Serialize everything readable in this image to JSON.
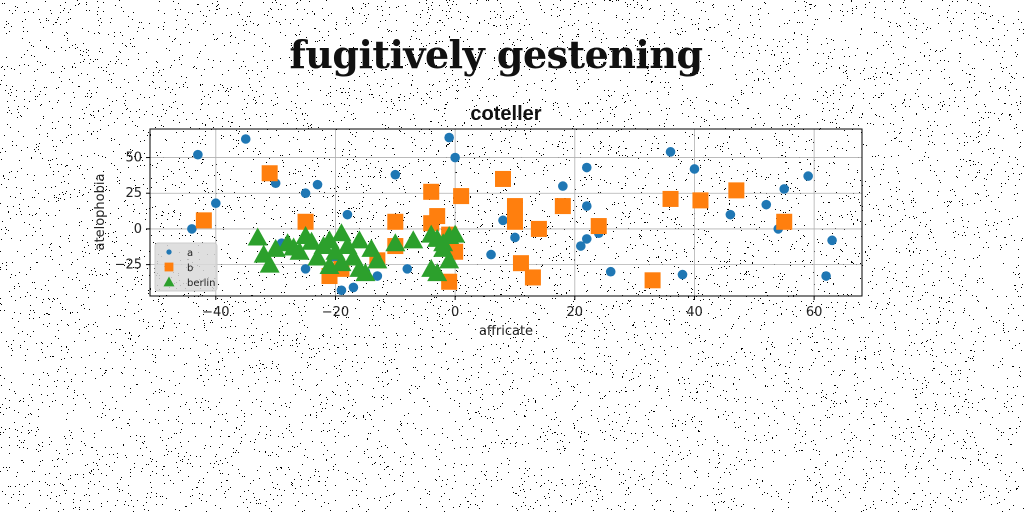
{
  "page": {
    "title": "fugitively gestening"
  },
  "chart_data": {
    "type": "scatter",
    "title": "coteller",
    "xlabel": "affricate",
    "ylabel": "atelophobia",
    "xlim": [
      -51,
      68
    ],
    "ylim": [
      -47,
      70
    ],
    "xticks": [
      -40,
      -20,
      0,
      20,
      40,
      60
    ],
    "xtick_labels": [
      "−40",
      "−20",
      "0",
      "20",
      "40",
      "60"
    ],
    "yticks": [
      -25,
      0,
      25,
      50
    ],
    "ytick_labels": [
      "−25",
      "0",
      "25",
      "50"
    ],
    "grid": true,
    "legend_position": "lower-left",
    "colors": {
      "a": "#1f77b4",
      "b": "#ff7f0e",
      "berlin": "#2ca02c"
    },
    "series": [
      {
        "name": "a",
        "marker": "circle",
        "points": [
          [
            -44,
            0
          ],
          [
            -43,
            52
          ],
          [
            -40,
            18
          ],
          [
            -35,
            63
          ],
          [
            -30,
            32
          ],
          [
            -29,
            -10
          ],
          [
            -25,
            25
          ],
          [
            -25,
            -28
          ],
          [
            -23,
            31
          ],
          [
            -20,
            -20
          ],
          [
            -19,
            -43
          ],
          [
            -18,
            10
          ],
          [
            -17,
            -41
          ],
          [
            -15,
            -30
          ],
          [
            -13,
            -33
          ],
          [
            -10,
            38
          ],
          [
            -8,
            -28
          ],
          [
            -1,
            64
          ],
          [
            0,
            50
          ],
          [
            6,
            -18
          ],
          [
            8,
            33
          ],
          [
            8,
            6
          ],
          [
            10,
            -6
          ],
          [
            18,
            30
          ],
          [
            21,
            -12
          ],
          [
            22,
            -7
          ],
          [
            22,
            43
          ],
          [
            22,
            16
          ],
          [
            24,
            -3
          ],
          [
            26,
            -30
          ],
          [
            36,
            54
          ],
          [
            38,
            -32
          ],
          [
            40,
            42
          ],
          [
            46,
            10
          ],
          [
            52,
            17
          ],
          [
            54,
            0
          ],
          [
            55,
            28
          ],
          [
            59,
            37
          ],
          [
            62,
            -33
          ],
          [
            63,
            -8
          ]
        ]
      },
      {
        "name": "b",
        "marker": "square",
        "points": [
          [
            -42,
            6
          ],
          [
            -31,
            39
          ],
          [
            -25,
            5
          ],
          [
            -21,
            -33
          ],
          [
            -19,
            -28
          ],
          [
            -13,
            -22
          ],
          [
            -10,
            5
          ],
          [
            -10,
            -12
          ],
          [
            -4,
            26
          ],
          [
            -4,
            4
          ],
          [
            -3,
            9
          ],
          [
            -1,
            -37
          ],
          [
            -1,
            -4
          ],
          [
            0,
            -16
          ],
          [
            1,
            23
          ],
          [
            8,
            35
          ],
          [
            10,
            16
          ],
          [
            10,
            5
          ],
          [
            11,
            -24
          ],
          [
            13,
            -34
          ],
          [
            14,
            0
          ],
          [
            18,
            16
          ],
          [
            24,
            2
          ],
          [
            33,
            -36
          ],
          [
            36,
            21
          ],
          [
            41,
            20
          ],
          [
            47,
            27
          ],
          [
            55,
            5
          ]
        ]
      },
      {
        "name": "berlin",
        "marker": "triangle",
        "points": [
          [
            -33,
            -6
          ],
          [
            -32,
            -18
          ],
          [
            -31,
            -25
          ],
          [
            -30,
            -14
          ],
          [
            -28,
            -10
          ],
          [
            -27,
            -13
          ],
          [
            -26,
            -16
          ],
          [
            -25,
            -5
          ],
          [
            -24,
            -9
          ],
          [
            -23,
            -20
          ],
          [
            -22,
            -12
          ],
          [
            -21,
            -26
          ],
          [
            -21,
            -8
          ],
          [
            -20,
            -16
          ],
          [
            -19,
            -24
          ],
          [
            -19,
            -3
          ],
          [
            -18,
            -12
          ],
          [
            -17,
            -20
          ],
          [
            -16,
            -8
          ],
          [
            -16,
            -28
          ],
          [
            -15,
            -31
          ],
          [
            -14,
            -14
          ],
          [
            -13,
            -22
          ],
          [
            -10,
            -10
          ],
          [
            -7,
            -8
          ],
          [
            -4,
            -4
          ],
          [
            -4,
            -28
          ],
          [
            -3,
            -31
          ],
          [
            -3,
            -7
          ],
          [
            -2,
            -14
          ],
          [
            -1,
            -5
          ],
          [
            -1,
            -22
          ],
          [
            0,
            -4
          ],
          [
            -2,
            -10
          ]
        ]
      }
    ],
    "legend": [
      {
        "label": "a",
        "marker": "circle"
      },
      {
        "label": "b",
        "marker": "square"
      },
      {
        "label": "berlin",
        "marker": "triangle"
      }
    ]
  }
}
